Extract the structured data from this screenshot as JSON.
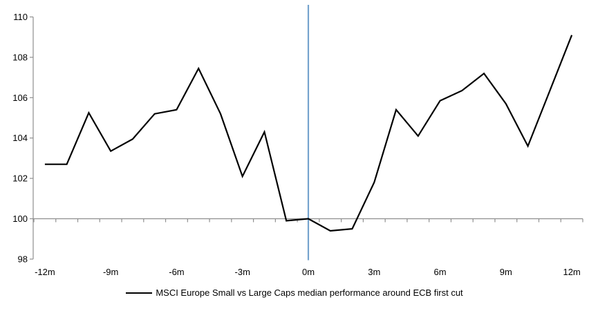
{
  "chart_data": {
    "type": "line",
    "title": "",
    "xlabel": "",
    "ylabel": "",
    "grid": "off",
    "x_months": [
      -12,
      -11,
      -10,
      -9,
      -8,
      -7,
      -6,
      -5,
      -4,
      -3,
      -2,
      -1,
      0,
      1,
      2,
      3,
      4,
      5,
      6,
      7,
      8,
      9,
      10,
      11,
      12
    ],
    "series": [
      {
        "name": "MSCI Europe Small vs Large Caps median performance around ECB first cut",
        "color": "#000000",
        "values": [
          102.7,
          102.7,
          105.25,
          103.35,
          103.95,
          105.2,
          105.4,
          107.45,
          105.2,
          102.1,
          104.3,
          99.9,
          100.0,
          99.4,
          99.5,
          101.8,
          105.4,
          104.1,
          105.85,
          106.35,
          107.2,
          105.7,
          103.6,
          106.35,
          109.1
        ]
      }
    ],
    "ylim": [
      98,
      110
    ],
    "ytick_step": 2,
    "ytick_labels": [
      "98",
      "100",
      "102",
      "104",
      "106",
      "108",
      "110"
    ],
    "xticks": [
      {
        "month": -12,
        "label": "-12m"
      },
      {
        "month": -9,
        "label": "-9m"
      },
      {
        "month": -6,
        "label": "-6m"
      },
      {
        "month": -3,
        "label": "-3m"
      },
      {
        "month": 0,
        "label": "0m"
      },
      {
        "month": 3,
        "label": "3m"
      },
      {
        "month": 6,
        "label": "6m"
      },
      {
        "month": 9,
        "label": "9m"
      },
      {
        "month": 12,
        "label": "12m"
      }
    ],
    "x_axis_cross_value": 100,
    "event_line": {
      "month": 0,
      "color": "#75a3cd"
    },
    "axis_color": "#8e8e8e",
    "legend": "MSCI Europe Small vs Large Caps median performance around ECB first cut",
    "legend_position": "bottom-center"
  }
}
